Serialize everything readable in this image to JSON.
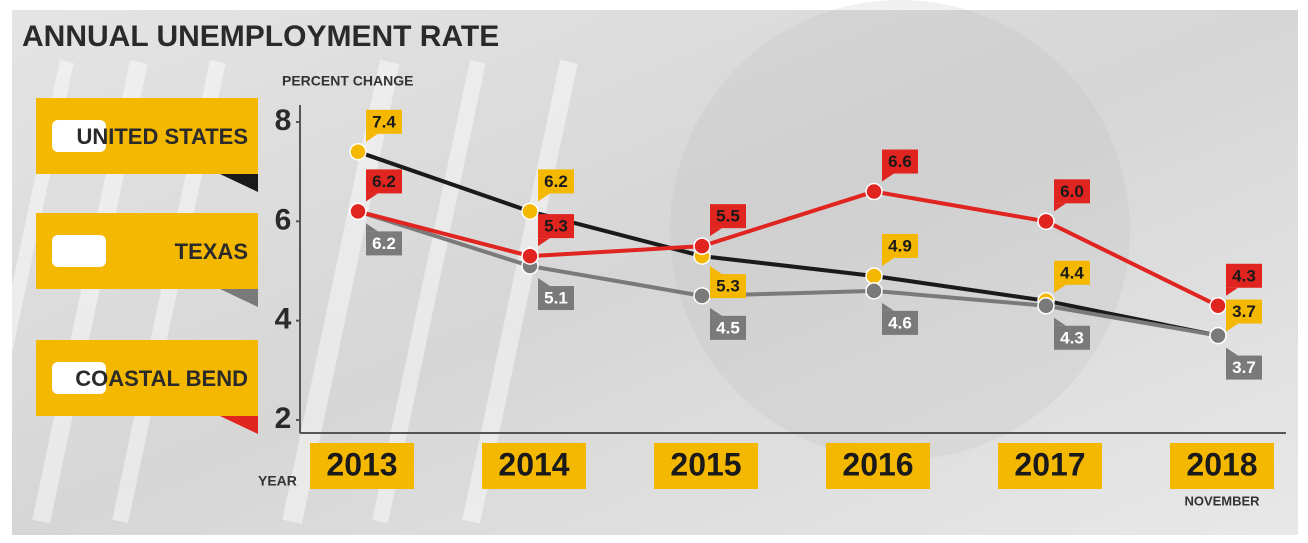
{
  "chart_data": {
    "type": "line",
    "title": "ANNUAL UNEMPLOYMENT RATE",
    "y_axis_label": "PERCENT CHANGE",
    "x_axis_label": "YEAR",
    "annotation": "NOVEMBER",
    "categories": [
      "2013",
      "2014",
      "2015",
      "2016",
      "2017",
      "2018"
    ],
    "ylim": [
      2,
      8
    ],
    "yticks": [
      2,
      4,
      6,
      8
    ],
    "series": [
      {
        "name": "UNITED STATES",
        "color": "#f5b800",
        "line_color": "#1a1a1a",
        "values": [
          7.4,
          6.2,
          5.3,
          4.9,
          4.4,
          3.7
        ]
      },
      {
        "name": "TEXAS",
        "color": "#7a7a7a",
        "line_color": "#7a7a7a",
        "values": [
          6.2,
          5.1,
          4.5,
          4.6,
          4.3,
          3.7
        ]
      },
      {
        "name": "COASTAL BEND",
        "color": "#e0241f",
        "line_color": "#e0241f",
        "values": [
          6.2,
          5.3,
          5.5,
          6.6,
          6.0,
          4.3
        ],
        "value_labels": [
          "6.2",
          "5.3",
          "5.5",
          "6.6",
          "6.0",
          "4.3"
        ]
      }
    ]
  }
}
